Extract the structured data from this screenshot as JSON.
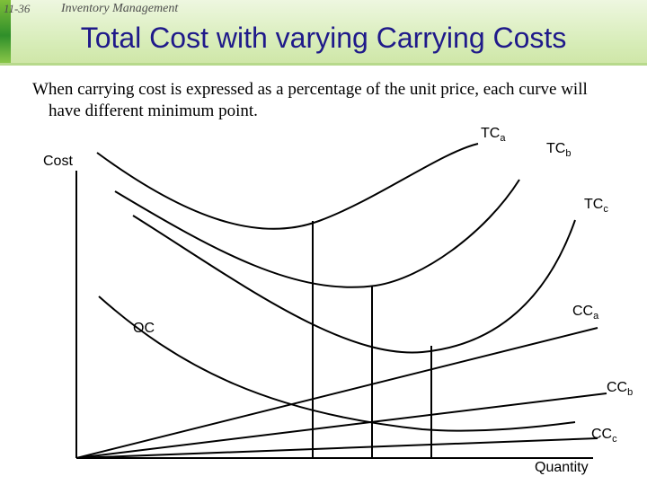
{
  "header": {
    "page_number": "11-36",
    "chapter": "Inventory Management",
    "title": "Total Cost with varying Carrying Costs"
  },
  "body": {
    "line1": "When carrying cost is expressed as a percentage of the unit price, each curve will",
    "line2": "have different minimum point."
  },
  "diagram": {
    "y_axis_label": "Cost",
    "x_axis_label": "Quantity",
    "ordering_cost_label": "OC",
    "curves": [
      {
        "id": "tca",
        "base": "TC",
        "sub": "a"
      },
      {
        "id": "tcb",
        "base": "TC",
        "sub": "b"
      },
      {
        "id": "tcc",
        "base": "TC",
        "sub": "c"
      },
      {
        "id": "cca",
        "base": "CC",
        "sub": "a"
      },
      {
        "id": "ccb",
        "base": "CC",
        "sub": "b"
      },
      {
        "id": "ccc",
        "base": "CC",
        "sub": "c"
      }
    ]
  }
}
